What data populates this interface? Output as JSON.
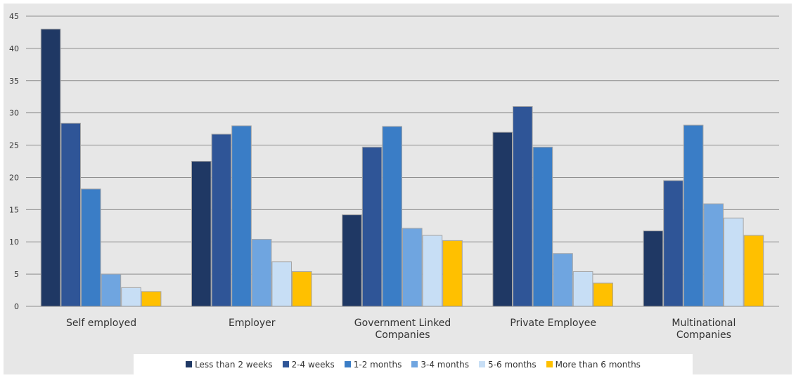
{
  "chart_data": {
    "type": "bar",
    "title": "",
    "xlabel": "",
    "ylabel": "",
    "ylim": [
      0,
      45
    ],
    "yticks": [
      0,
      5,
      10,
      15,
      20,
      25,
      30,
      35,
      40,
      45
    ],
    "grid": true,
    "legend_position": "bottom",
    "categories": [
      [
        "Self employed"
      ],
      [
        "Employer"
      ],
      [
        "Government Linked",
        "Companies"
      ],
      [
        "Private Employee"
      ],
      [
        "Multinational",
        "Companies"
      ]
    ],
    "series": [
      {
        "name": "Less than 2 weeks",
        "color": "#1f3864",
        "values": [
          43,
          22.5,
          14.2,
          27,
          11.7
        ]
      },
      {
        "name": "2-4 weeks",
        "color": "#2f5597",
        "values": [
          28.4,
          26.7,
          24.7,
          31,
          19.5
        ]
      },
      {
        "name": "1-2 months",
        "color": "#3a7dc6",
        "values": [
          18.2,
          28,
          27.9,
          24.7,
          28.1
        ]
      },
      {
        "name": "3-4 months",
        "color": "#6fa5e0",
        "values": [
          5,
          10.4,
          12.1,
          8.2,
          15.9
        ]
      },
      {
        "name": "5-6 months",
        "color": "#c7def5",
        "values": [
          2.9,
          6.9,
          11,
          5.4,
          13.7
        ]
      },
      {
        "name": "More than 6 months",
        "color": "#ffc000",
        "values": [
          2.3,
          5.4,
          10.2,
          3.6,
          11
        ]
      }
    ]
  }
}
